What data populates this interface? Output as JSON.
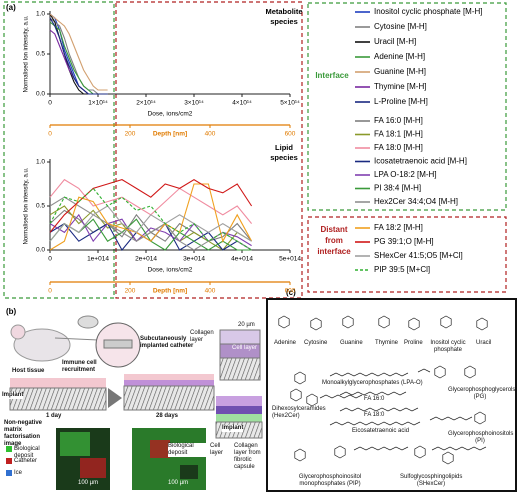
{
  "panel_a": {
    "label": "(a)",
    "interface": "Interface",
    "distant": [
      "Distant",
      "from",
      "interface"
    ]
  },
  "chart_data": [
    {
      "type": "line",
      "annotation": [
        "Metabolite",
        "species"
      ],
      "x_label": "Dose, ions/cm2",
      "x2_label": "Depth [nm]",
      "y_label": "Normalised Ion intensity, a.u.",
      "x": [
        0,
        10000000000000.0,
        20000000000000.0,
        30000000000000.0,
        40000000000000.0,
        50000000000000.0,
        60000000000000.0,
        70000000000000.0,
        80000000000000.0,
        90000000000000.0,
        100000000000000.0,
        120000000000000.0
      ],
      "xlim": [
        0,
        500000000000000.0
      ],
      "xticks": [
        0,
        {
          "value": 100000000000000.0,
          "label": "1×10¹⁴"
        },
        {
          "value": 200000000000000.0,
          "label": "2×10¹⁴"
        },
        {
          "value": 300000000000000.0,
          "label": "3×10¹⁴"
        },
        {
          "value": 400000000000000.0,
          "label": "4×10¹⁴"
        },
        {
          "value": 500000000000000.0,
          "label": "5×10¹⁴"
        }
      ],
      "x2lim": [
        0,
        600
      ],
      "x2ticks": [
        0,
        200,
        400,
        600
      ],
      "x2_color": "#e07b00",
      "ylim": [
        0,
        1
      ],
      "yticks": [
        {
          "value": 0,
          "label": "0.0"
        },
        0.5,
        {
          "value": 1,
          "label": "1.0"
        }
      ],
      "series": [
        {
          "name": "Inositol cyclic phosphate [M-H]",
          "color": "#1f3fbf",
          "values": [
            1,
            0.95,
            0.8,
            0.55,
            0.4,
            0.25,
            0.1,
            0.05,
            0,
            0,
            0,
            0
          ]
        },
        {
          "name": "Cytosine [M-H]",
          "color": "#808080",
          "values": [
            0.95,
            0.9,
            0.85,
            0.7,
            0.5,
            0.35,
            0.2,
            0.1,
            0.05,
            0.05,
            0,
            0
          ]
        },
        {
          "name": "Uracil [M-H]",
          "color": "#111111",
          "values": [
            1,
            0.9,
            0.7,
            0.5,
            0.3,
            0.15,
            0.05,
            0,
            0,
            0,
            0,
            0
          ]
        },
        {
          "name": "Adenine [M-H]",
          "color": "#3a9a3a",
          "values": [
            0.9,
            0.85,
            0.8,
            0.6,
            0.45,
            0.3,
            0.2,
            0.1,
            0.05,
            0,
            0,
            0
          ]
        },
        {
          "name": "Guanine [M-H]",
          "color": "#d2a070",
          "values": [
            1,
            0.95,
            0.9,
            0.85,
            0.75,
            0.6,
            0.45,
            0.3,
            0.2,
            0.1,
            0.05,
            0.05
          ]
        },
        {
          "name": "Thymine [M-H]",
          "color": "#7a2aa0",
          "values": [
            0.8,
            0.75,
            0.6,
            0.45,
            0.3,
            0.2,
            0.1,
            0.05,
            0,
            0,
            0,
            0
          ]
        },
        {
          "name": "L-Proline [M-H]",
          "color": "#1a2a80",
          "values": [
            0.95,
            0.85,
            0.7,
            0.5,
            0.35,
            0.2,
            0.1,
            0.05,
            0,
            0,
            0,
            0
          ]
        }
      ]
    },
    {
      "type": "line",
      "annotation": [
        "Lipid",
        "species"
      ],
      "x_label": "Dose, ions/cm2",
      "x2_label": "Depth [nm]",
      "y_label": "Normalised Ion intensity, a.u.",
      "x": [
        0,
        30000000000000.0,
        60000000000000.0,
        90000000000000.0,
        120000000000000.0,
        150000000000000.0,
        180000000000000.0,
        210000000000000.0,
        240000000000000.0,
        270000000000000.0,
        300000000000000.0,
        330000000000000.0,
        360000000000000.0,
        390000000000000.0,
        420000000000000.0
      ],
      "xlim": [
        0,
        500000000000000.0
      ],
      "xticks": [
        0,
        {
          "value": 100000000000000.0,
          "label": "1e+014"
        },
        {
          "value": 200000000000000.0,
          "label": "2e+014"
        },
        {
          "value": 300000000000000.0,
          "label": "3e+014"
        },
        {
          "value": 400000000000000.0,
          "label": "4e+014"
        },
        {
          "value": 500000000000000.0,
          "label": "5e+014"
        }
      ],
      "x2lim": [
        0,
        600
      ],
      "x2ticks": [
        0,
        200,
        400,
        600
      ],
      "x2_color": "#e07b00",
      "ylim": [
        0,
        1
      ],
      "yticks": [
        {
          "value": 0,
          "label": "0.0"
        },
        0.5,
        {
          "value": 1,
          "label": "1.0"
        }
      ],
      "series": [
        {
          "name": "FA 16:0 [M-H]",
          "color": "#7f7f7f",
          "values": [
            0.3,
            0.45,
            0.35,
            0.2,
            0.3,
            0.15,
            0.4,
            0.2,
            0.1,
            0.3,
            0.2,
            0.1,
            0.15,
            0.3,
            0.1
          ]
        },
        {
          "name": "FA 18:1 [M-H]",
          "color": "#8a9a2a",
          "values": [
            0.4,
            0.5,
            0.3,
            0.45,
            0.25,
            0.3,
            0.1,
            0.2,
            0.3,
            0.1,
            0.2,
            0.1,
            0,
            0.2,
            0.1
          ]
        },
        {
          "name": "FA 18:0 [M-H]",
          "color": "#f08ca0",
          "values": [
            0.6,
            0.8,
            0.7,
            0.5,
            0.55,
            0.6,
            0.5,
            0.4,
            0.55,
            0.7,
            0.6,
            0.5,
            0.4,
            0.5,
            0.3
          ]
        },
        {
          "name": "Icosatetraenoic acid [M-H]",
          "color": "#1a2a80",
          "values": [
            0.2,
            0.3,
            0.1,
            0.2,
            0.3,
            0,
            0.2,
            0.1,
            0.3,
            0,
            0.1,
            0.2,
            0,
            0.1,
            0
          ]
        },
        {
          "name": "LPA O-18:2 [M-H]",
          "color": "#8040b0",
          "values": [
            0.3,
            0.2,
            0.4,
            0.1,
            0.3,
            0.35,
            0.1,
            0.25,
            0.2,
            0.1,
            0.3,
            0.1,
            0.2,
            0.15,
            0.05
          ]
        },
        {
          "name": "PI 38:4 [M-H]",
          "color": "#3a9a3a",
          "values": [
            0.1,
            0.3,
            0.2,
            0.35,
            0.1,
            0.2,
            0.35,
            0.1,
            0,
            0.2,
            0.1,
            0,
            0.1,
            0,
            0
          ]
        },
        {
          "name": "Hex2Cer 34:4;O4 [M-H]",
          "color": "#909090",
          "values": [
            0.5,
            0.6,
            0.5,
            0.4,
            0.3,
            0.2,
            0.1,
            0.2,
            0.3,
            0.1,
            0,
            0.1,
            0.2,
            0.1,
            0
          ]
        },
        {
          "name": "FA 18:2 [M-H]",
          "color": "#f0a020",
          "values": [
            0,
            0.1,
            0.6,
            0.55,
            0.3,
            0.25,
            0.2,
            0.1,
            0.3,
            0.2,
            0.75,
            0.75,
            0.1,
            0.4,
            0.1
          ]
        },
        {
          "name": "PG 39:1;O [M-H]",
          "color": "#d01818",
          "values": [
            0.2,
            0.4,
            0.55,
            0.7,
            0.75,
            0.8,
            0.7,
            0.6,
            0.75,
            0.7,
            0.8,
            0.7,
            0.65,
            0.75,
            0.5
          ]
        },
        {
          "name": "SHexCer 41:5;O5 [M+Cl]",
          "color": "#a0a0a0",
          "values": [
            0.1,
            0.3,
            0.2,
            0.4,
            0.5,
            0.3,
            0.2,
            0.4,
            0.3,
            0.4,
            0.3,
            0.2,
            0.3,
            0.2,
            0.1
          ]
        },
        {
          "name": "PIP 39:5 [M+Cl]",
          "color": "#30b030",
          "dash": true,
          "values": [
            0.3,
            0.6,
            0.55,
            0.7,
            0.5,
            0.6,
            0.45,
            0.5,
            0.3,
            0.2,
            0.3,
            0.1,
            0.2,
            0.1,
            0
          ]
        }
      ]
    }
  ],
  "panel_b": {
    "label": "(b)",
    "title": "Subcutaneously implanted catheter",
    "scale_top": "20 µm",
    "collagen_layer": "Collagen layer",
    "cell_layer": "Cell layer",
    "host_tissue": "Host tissue",
    "immune": "Immune cell recruitment",
    "implant": "Implant",
    "day1": "1 day",
    "day28": "28 days",
    "implant2": "Implant",
    "bio_deposit": "Biological deposit",
    "cell_layer2": "Cell layer",
    "collagen_capsule": "Collagen layer from fibrotic capsule",
    "nmf": "Non-negative matrix factorisation image",
    "legend": [
      "Biological deposit",
      "Catheter",
      "Ice"
    ],
    "scale1": "100 µm",
    "scale2": "100 µm"
  },
  "panel_c": {
    "label": "(c)",
    "molecules": [
      "Adenine",
      "Cytosine",
      "Guanine",
      "Thymine",
      "Proline",
      "Inositol cyclic phosphate",
      "Uracil",
      "Monoalkylglycerophosphates (LPA-O)",
      "Glycerophosphoglycerols (PG)",
      "Dihexosylceramides (Hex2Cer)",
      "FA 16:0",
      "FA 18:0",
      "Eicosatetraenoic acid",
      "Glycerophosphoinositols (PI)",
      "Glycerophosphoinositol monophosphates (PIP)",
      "Sulfoglycosphingolipids (SHexCer)"
    ]
  }
}
